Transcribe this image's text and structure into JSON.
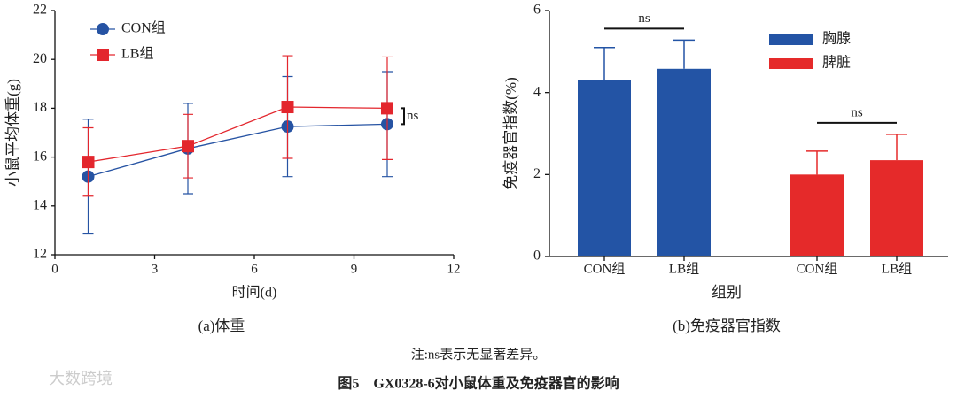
{
  "chart_data": [
    {
      "type": "line",
      "subtitle": "(a)体重",
      "xlabel": "时间(d)",
      "ylabel": "小鼠平均体重(g)",
      "x": [
        1,
        4,
        7,
        10
      ],
      "series": [
        {
          "name": "CON组",
          "color": "#2653a3",
          "marker": "circle",
          "values": [
            15.2,
            16.35,
            17.25,
            17.35
          ],
          "errors": [
            2.35,
            1.85,
            2.05,
            2.15
          ]
        },
        {
          "name": "LB组",
          "color": "#e3262d",
          "marker": "square",
          "values": [
            15.8,
            16.45,
            18.05,
            18.0
          ],
          "errors": [
            1.4,
            1.3,
            2.1,
            2.1
          ]
        }
      ],
      "xlim": [
        0,
        12
      ],
      "xticks": [
        0,
        3,
        6,
        9,
        12
      ],
      "ylim": [
        12,
        22
      ],
      "yticks": [
        12,
        14,
        16,
        18,
        20,
        22
      ],
      "annotation": "ns",
      "legend": "upper left"
    },
    {
      "type": "bar",
      "subtitle": "(b)免疫器官指数",
      "xlabel": "组别",
      "ylabel": "免疫器官指数(%)",
      "categories": [
        "CON组",
        "LB组"
      ],
      "series": [
        {
          "name": "胸腺",
          "color": "#2354a5",
          "values": [
            4.3,
            4.58
          ],
          "errors": [
            0.8,
            0.7
          ]
        },
        {
          "name": "脾脏",
          "color": "#e52a2a",
          "values": [
            2.0,
            2.35
          ],
          "errors": [
            0.57,
            0.63
          ]
        }
      ],
      "ylim": [
        0,
        6
      ],
      "yticks": [
        0,
        2,
        4,
        6
      ],
      "annotations": [
        "ns",
        "ns"
      ],
      "legend": "upper right"
    }
  ],
  "note": "注:ns表示无显著差异。",
  "caption": "图5　GX0328-6对小鼠体重及免疫器官的影响",
  "watermark": "大数跨境"
}
